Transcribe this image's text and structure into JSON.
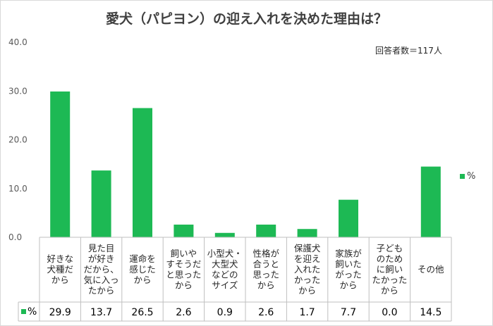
{
  "chart_data": {
    "type": "bar",
    "title": "愛犬（パピヨン）の迎え入れを決めた理由は？",
    "note": "回答者数＝117人",
    "series_name": "%",
    "ylim": [
      0,
      40
    ],
    "yticks": [
      "0.0",
      "10.0",
      "20.0",
      "30.0",
      "40.0"
    ],
    "categories": [
      "好きな\n犬種だ\nから",
      "見た目\nが好き\nだから、\n気に入っ\nたから",
      "運命を\n感じた\nから",
      "飼いや\nすそうだ\nと思った\nから",
      "小型犬・\n大型犬\nなどの\nサイズ",
      "性格が\n合うと\n思った\nから",
      "保護犬\nを迎え\n入れた\nかった\nから",
      "家族が\n飼いた\nがった\nから",
      "子ども\nのため\nに飼い\nたかった\nから",
      "その他"
    ],
    "values": [
      29.9,
      13.7,
      26.5,
      2.6,
      0.9,
      2.6,
      1.7,
      7.7,
      0.0,
      14.5
    ],
    "value_labels": [
      "29.9",
      "13.7",
      "26.5",
      "2.6",
      "0.9",
      "2.6",
      "1.7",
      "7.7",
      "0.0",
      "14.5"
    ],
    "bar_color": "#1DB954"
  }
}
